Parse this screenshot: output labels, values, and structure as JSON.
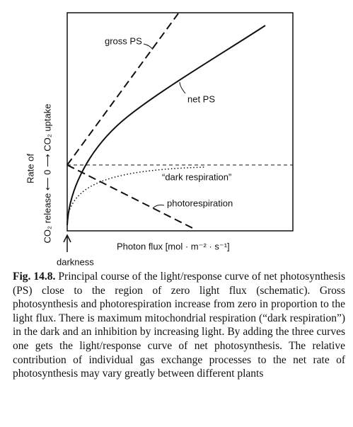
{
  "figure": {
    "labels": {
      "gross_ps": "gross PS",
      "net_ps": "net PS",
      "dark_respiration": "“dark respiration”",
      "photorespiration": "photorespiration",
      "darkness": "darkness"
    },
    "y_axis": {
      "title": "Rate of",
      "label": "CO₂ release ⟵ 0 ⟶ CO₂ uptake"
    },
    "x_axis": {
      "label": "Photon flux [mol · m⁻² · s⁻¹]"
    }
  },
  "caption": {
    "label": "Fig. 14.8.",
    "text": "Principal course of the light/response curve of net photosynthesis (PS) close to the region of zero light flux (schematic). Gross photosynthesis and photorespiration increase from zero in proportion to the light flux. There is maximum mitochondrial respiration (“dark respiration”) in the dark and an inhibition by increasing light. By adding the three curves one gets the light/response curve of net photosynthesis. The relative contribution of individual gas exchange processes to the net rate of photosynthesis may vary greatly between different plants"
  }
}
